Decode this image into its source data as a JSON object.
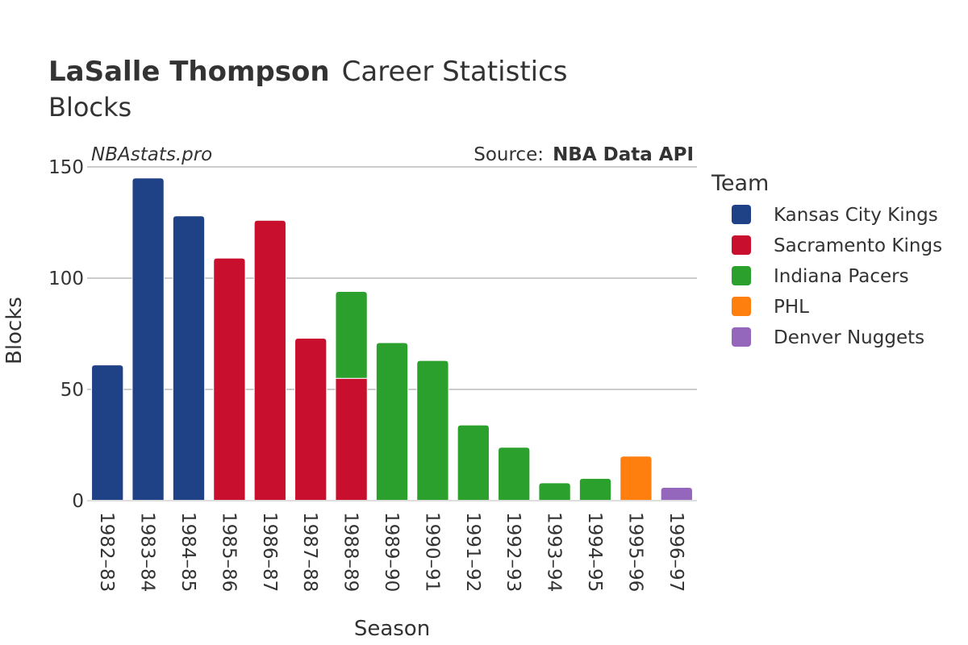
{
  "chart_data": {
    "type": "bar",
    "stacked": true,
    "title_bold": "LaSalle Thompson",
    "title_rest": "Career Statistics",
    "subtitle": "Blocks",
    "watermark": "NBAstats.pro",
    "source_label": "Source:",
    "source_value": "NBA Data API",
    "xlabel": "Season",
    "ylabel": "Blocks",
    "ylim": [
      0,
      150
    ],
    "yticks": [
      0,
      50,
      100,
      150
    ],
    "categories": [
      "1982–83",
      "1983–84",
      "1984–85",
      "1985–86",
      "1986–87",
      "1987–88",
      "1988–89",
      "1989–90",
      "1990–91",
      "1991–92",
      "1992–93",
      "1993–94",
      "1994–95",
      "1995–96",
      "1996–97"
    ],
    "legend_title": "Team",
    "legend_position": "right",
    "grid": true,
    "series": [
      {
        "name": "Kansas City Kings",
        "color": "#1f4287",
        "values": [
          61,
          145,
          128,
          0,
          0,
          0,
          0,
          0,
          0,
          0,
          0,
          0,
          0,
          0,
          0
        ]
      },
      {
        "name": "Sacramento Kings",
        "color": "#c8102e",
        "values": [
          0,
          0,
          0,
          109,
          126,
          73,
          55,
          0,
          0,
          0,
          0,
          0,
          0,
          0,
          0
        ]
      },
      {
        "name": "Indiana Pacers",
        "color": "#2ca02c",
        "values": [
          0,
          0,
          0,
          0,
          0,
          0,
          39,
          71,
          63,
          34,
          24,
          8,
          10,
          0,
          0
        ]
      },
      {
        "name": "PHL",
        "color": "#ff7f0e",
        "values": [
          0,
          0,
          0,
          0,
          0,
          0,
          0,
          0,
          0,
          0,
          0,
          0,
          0,
          20,
          0
        ]
      },
      {
        "name": "Denver Nuggets",
        "color": "#9467bd",
        "values": [
          0,
          0,
          0,
          0,
          0,
          0,
          0,
          0,
          0,
          0,
          0,
          0,
          0,
          0,
          6
        ]
      }
    ]
  }
}
